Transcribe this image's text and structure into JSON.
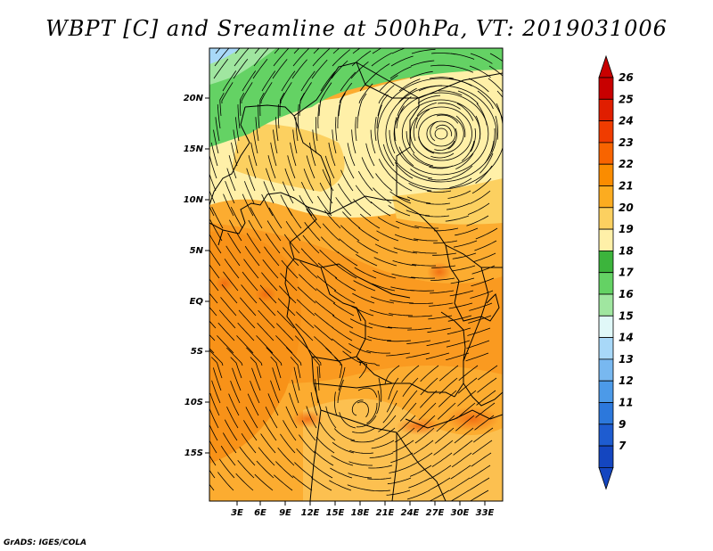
{
  "title": "WBPT [C] and Sreamline at 500hPa, VT: 2019031006",
  "credit": "GrADS: IGES/COLA",
  "map": {
    "lat_labels": [
      "20N",
      "15N",
      "10N",
      "5N",
      "EQ",
      "5S",
      "10S",
      "15S"
    ],
    "lon_labels": [
      "3E",
      "6E",
      "9E",
      "12E",
      "15E",
      "18E",
      "21E",
      "24E",
      "27E",
      "30E",
      "33E"
    ]
  },
  "colorbar": {
    "labels": [
      "26",
      "25",
      "24",
      "23",
      "22",
      "21",
      "20",
      "19",
      "18",
      "17",
      "16",
      "15",
      "14",
      "13",
      "12",
      "11",
      "9",
      "7"
    ],
    "colors": [
      "#c80000",
      "#e01e00",
      "#f03c00",
      "#f86400",
      "#fa8c00",
      "#fcac20",
      "#fcd060",
      "#fff0a8",
      "#3cb43c",
      "#64d264",
      "#a0e6a0",
      "#e0f8f8",
      "#a8d8f8",
      "#78b8f0",
      "#4c9ae8",
      "#2c78dc",
      "#1e5cd0",
      "#1446c0"
    ]
  }
}
